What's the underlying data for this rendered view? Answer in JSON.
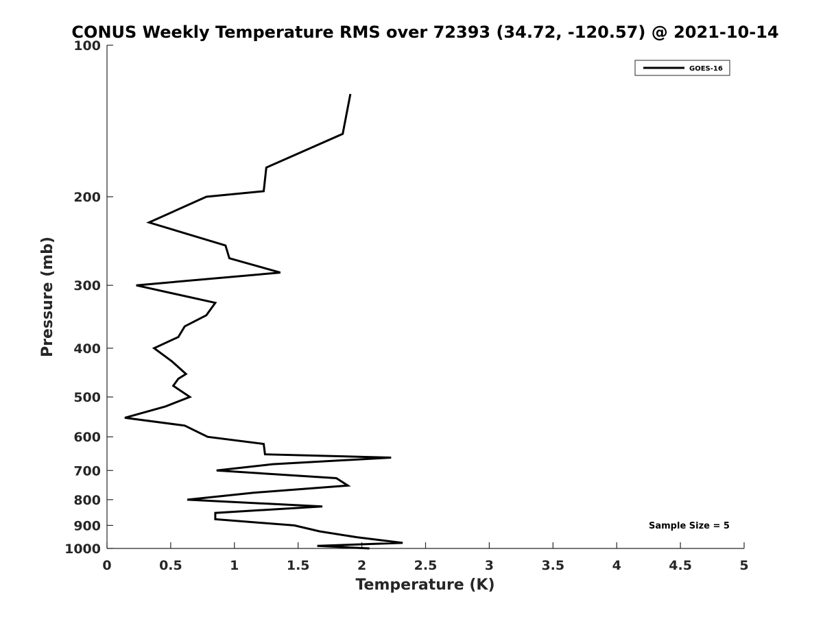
{
  "chart_data": {
    "type": "line",
    "title": "CONUS Weekly Temperature RMS over 72393 (34.72, -120.57) @ 2021-10-14",
    "xlabel": "Temperature (K)",
    "ylabel": "Pressure (mb)",
    "xlim": [
      0,
      5
    ],
    "ylim": [
      100,
      1000
    ],
    "y_scale": "log",
    "y_reversed": true,
    "x_ticks": [
      "0",
      "0.5",
      "1",
      "1.5",
      "2",
      "2.5",
      "3",
      "3.5",
      "4",
      "4.5",
      "5"
    ],
    "y_ticks": [
      "100",
      "200",
      "300",
      "400",
      "500",
      "600",
      "700",
      "800",
      "900",
      "1000"
    ],
    "grid": false,
    "legend_position": "top-right",
    "annotation": "Sample Size = 5",
    "series": [
      {
        "name": "GOES-16",
        "color": "#000000",
        "points": [
          [
            1.91,
            125
          ],
          [
            1.85,
            150
          ],
          [
            1.25,
            175
          ],
          [
            1.23,
            195
          ],
          [
            0.78,
            200
          ],
          [
            0.33,
            225
          ],
          [
            0.93,
            250
          ],
          [
            0.96,
            265
          ],
          [
            1.36,
            283
          ],
          [
            0.23,
            300
          ],
          [
            0.85,
            325
          ],
          [
            0.78,
            344
          ],
          [
            0.61,
            362
          ],
          [
            0.56,
            380
          ],
          [
            0.37,
            400
          ],
          [
            0.51,
            425
          ],
          [
            0.62,
            450
          ],
          [
            0.56,
            460
          ],
          [
            0.52,
            475
          ],
          [
            0.65,
            500
          ],
          [
            0.46,
            522
          ],
          [
            0.14,
            550
          ],
          [
            0.61,
            570
          ],
          [
            0.79,
            600
          ],
          [
            1.23,
            620
          ],
          [
            1.24,
            650
          ],
          [
            2.23,
            660
          ],
          [
            1.3,
            680
          ],
          [
            0.86,
            700
          ],
          [
            1.8,
            725
          ],
          [
            1.89,
            750
          ],
          [
            1.15,
            775
          ],
          [
            0.63,
            800
          ],
          [
            1.69,
            825
          ],
          [
            0.85,
            850
          ],
          [
            0.85,
            875
          ],
          [
            1.47,
            900
          ],
          [
            1.67,
            925
          ],
          [
            1.96,
            950
          ],
          [
            2.32,
            975
          ],
          [
            1.65,
            988
          ],
          [
            2.06,
            1000
          ]
        ]
      }
    ]
  }
}
